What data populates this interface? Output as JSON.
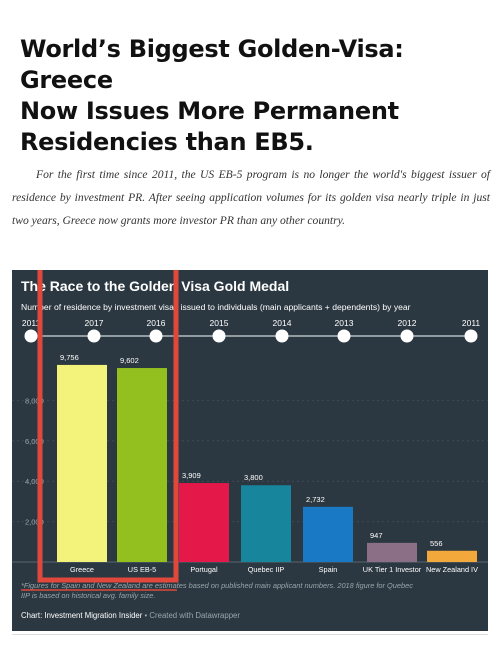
{
  "article": {
    "headline_lines": [
      "World’s Biggest Golden-Visa: Greece",
      "Now Issues More Permanent",
      "Residencies than EB5."
    ],
    "intro": "For the first time since 2011, the US EB-5 program is no longer the world's biggest issuer of residence by investment PR. After seeing application volumes for its golden visa nearly triple in just two years, Greece now grants more investor PR than any other country."
  },
  "chart_data": {
    "type": "bar",
    "title": "The Race to the Golden Visa Gold Medal",
    "subtitle": "Number of residence by investment visas issued to individuals (main applicants + dependents) by year",
    "categories": [
      "Greece",
      "US EB-5",
      "Portugal",
      "Quebec IIP",
      "Spain",
      "UK Tier 1 Investor",
      "New Zealand IV"
    ],
    "values": [
      9756,
      9602,
      3909,
      3800,
      2732,
      947,
      556
    ],
    "value_labels": [
      "9,756",
      "9,602",
      "3,909",
      "3,800",
      "2,732",
      "947",
      "556"
    ],
    "bar_colors": [
      "#f3f27a",
      "#93c01f",
      "#e5184a",
      "#17869d",
      "#1a79c4",
      "#8a6f87",
      "#f2a83a"
    ],
    "timeline_years": [
      "2011",
      "2017",
      "2016",
      "2015",
      "2014",
      "2013",
      "2012",
      "2011"
    ],
    "y_ticks": [
      "8,000",
      "6,000",
      "4,000",
      "2,000"
    ],
    "ylim": [
      0,
      10000
    ],
    "grid": true,
    "footnote": "*Figures for Spain and New Zealand are estimates based on published main applicant numbers. 2018 figure for Quebec IIP is based on historical avg. family size.",
    "source": "Chart: Investment Migration Insider",
    "credit": " • Created with Datawrapper",
    "colors": {
      "background": "#2c3841",
      "text": "#ffffff",
      "muted": "#9aa4ab",
      "highlight_box": "#e0483b",
      "footnote_highlight": "#e0483b"
    }
  }
}
